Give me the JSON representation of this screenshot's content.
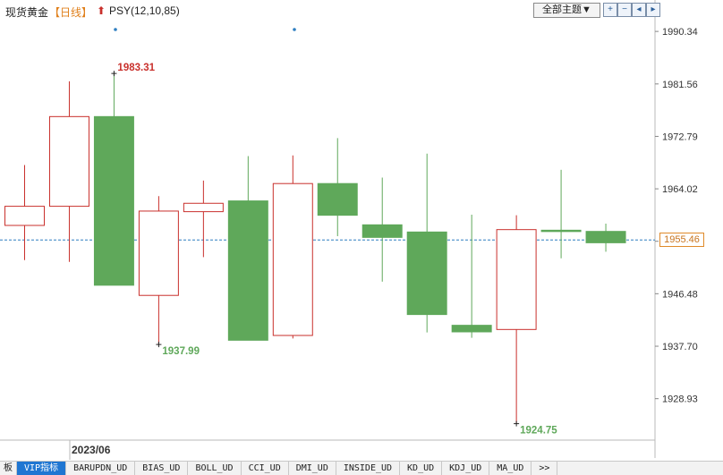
{
  "header": {
    "instrument": "现货黄金",
    "period": "【日线】",
    "indicator": "PSY(12,10,85)"
  },
  "toolbar": {
    "theme_label": "全部主题▼",
    "buttons": [
      "zoom-in-icon",
      "zoom-out-icon",
      "previous-icon",
      "next-icon"
    ]
  },
  "current_price_label": "1955.46",
  "date_label": "2023/06",
  "tabs": [
    "板",
    "VIP指标",
    "BARUPDN_UD",
    "BIAS_UD",
    "BOLL_UD",
    "CCI_UD",
    "DMI_UD",
    "INSIDE_UD",
    "KD_UD",
    "KDJ_UD",
    "MA_UD",
    ">>"
  ],
  "colors": {
    "up": "#c9302c",
    "down": "#5fa85a",
    "price_line": "#2f7fc1",
    "price_tag": "#e08a2a"
  },
  "chart_data": {
    "type": "candlestick",
    "y_ticks": [
      1990.34,
      1981.56,
      1972.79,
      1964.02,
      1955.25,
      1946.48,
      1937.7,
      1928.93
    ],
    "ylim": [
      1922.0,
      1993.5
    ],
    "current_price": 1955.46,
    "annotations": [
      {
        "text": "1983.31",
        "value": 1983.31,
        "candle": 2,
        "color": "#c9302c"
      },
      {
        "text": "1937.99",
        "value": 1937.99,
        "candle": 3,
        "color": "#5fa85a"
      },
      {
        "text": "1924.75",
        "value": 1924.75,
        "candle": 11,
        "color": "#5fa85a"
      }
    ],
    "candles": [
      {
        "open": 1957.9,
        "close": 1961.1,
        "high": 1968.0,
        "low": 1952.1
      },
      {
        "open": 1961.1,
        "close": 1976.1,
        "high": 1982.0,
        "low": 1951.8
      },
      {
        "open": 1976.1,
        "close": 1947.9,
        "high": 1983.31,
        "low": 1947.9
      },
      {
        "open": 1946.2,
        "close": 1960.3,
        "high": 1962.8,
        "low": 1937.99
      },
      {
        "open": 1960.2,
        "close": 1961.6,
        "high": 1965.4,
        "low": 1952.6
      },
      {
        "open": 1962.0,
        "close": 1938.7,
        "high": 1969.5,
        "low": 1938.7
      },
      {
        "open": 1939.5,
        "close": 1964.9,
        "high": 1969.6,
        "low": 1939.0
      },
      {
        "open": 1964.9,
        "close": 1959.6,
        "high": 1972.5,
        "low": 1956.1
      },
      {
        "open": 1958.0,
        "close": 1955.9,
        "high": 1965.9,
        "low": 1948.5
      },
      {
        "open": 1956.8,
        "close": 1943.0,
        "high": 1969.9,
        "low": 1940.0
      },
      {
        "open": 1941.2,
        "close": 1940.1,
        "high": 1959.7,
        "low": 1939.1
      },
      {
        "open": 1940.5,
        "close": 1957.2,
        "high": 1959.6,
        "low": 1924.75
      },
      {
        "open": 1957.1,
        "close": 1956.9,
        "high": 1967.2,
        "low": 1952.4
      },
      {
        "open": 1956.9,
        "close": 1955.0,
        "high": 1958.2,
        "low": 1953.5
      }
    ]
  }
}
